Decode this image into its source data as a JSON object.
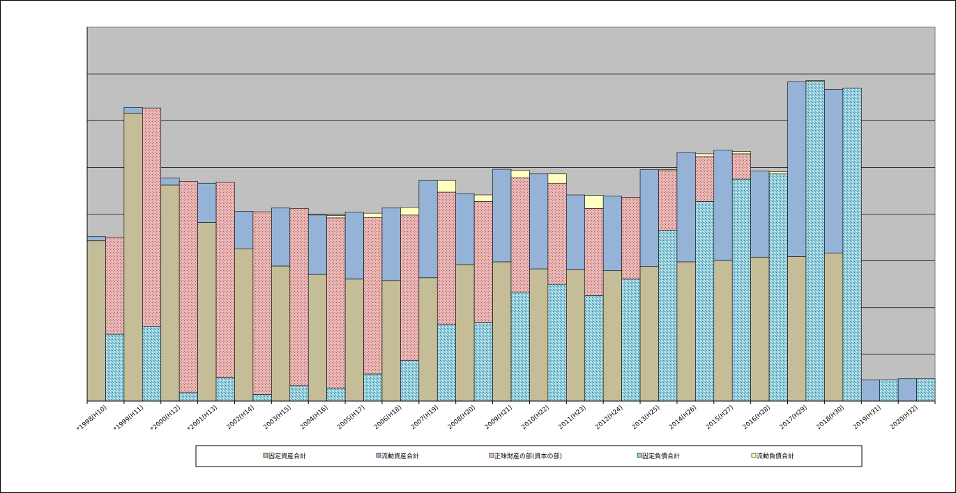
{
  "chart_data": {
    "type": "bar",
    "stacked": true,
    "grouping": "two stacked bars per year (assets | liabilities+equity)",
    "ylim": [
      0,
      8
    ],
    "y_gridlines": 8,
    "grid": true,
    "legend_position": "bottom",
    "categories": [
      "*1998(H10)",
      "*1999(H11)",
      "*2000(H12)",
      "*2001(H13)",
      "2002(H14)",
      "2003(H15)",
      "2004(H16)",
      "2005(H17)",
      "2006(H18)",
      "2007(H19)",
      "2008(H20)",
      "2009(H21)",
      "2010(H22)",
      "2011(H23)",
      "2012(H24)",
      "2013(H25)",
      "2014(H26)",
      "2015(H27)",
      "2016(H28)",
      "2017(H29)",
      "2018(H30)",
      "2019(H31)",
      "2020(H32)"
    ],
    "series": [
      {
        "name": "固定資産合計",
        "stack": "assets",
        "color": "#C4BD97",
        "values": [
          3.43,
          6.16,
          4.62,
          3.82,
          3.26,
          2.89,
          2.71,
          2.61,
          2.58,
          2.64,
          2.92,
          2.98,
          2.83,
          2.81,
          2.79,
          2.88,
          2.98,
          3.01,
          3.08,
          3.09,
          3.17,
          0.0,
          0.0
        ]
      },
      {
        "name": "流動資産合計",
        "stack": "assets",
        "color": "#95B3D7",
        "values": [
          0.09,
          0.12,
          0.15,
          0.84,
          0.8,
          1.24,
          1.27,
          1.43,
          1.55,
          2.08,
          1.52,
          1.98,
          2.03,
          1.6,
          1.6,
          2.07,
          2.34,
          2.36,
          1.84,
          3.74,
          3.5,
          0.45,
          0.48
        ]
      },
      {
        "name": "固定負債合計",
        "stack": "liabilities",
        "color": "#92CDDC",
        "values": [
          1.43,
          1.6,
          0.18,
          0.5,
          0.14,
          0.33,
          0.28,
          0.58,
          0.87,
          1.64,
          1.68,
          2.33,
          2.5,
          2.26,
          2.61,
          3.65,
          4.27,
          4.75,
          4.86,
          6.84,
          6.7,
          0.45,
          0.48
        ]
      },
      {
        "name": "正味財産の部(資本の部)",
        "stack": "liabilities",
        "color": "#E6B9B8",
        "values": [
          2.07,
          4.67,
          4.52,
          4.18,
          3.91,
          3.79,
          3.64,
          3.35,
          3.11,
          2.83,
          2.59,
          2.45,
          2.16,
          1.86,
          1.75,
          1.28,
          0.96,
          0.54,
          0.0,
          0.0,
          0.0,
          0.0,
          0.0
        ]
      },
      {
        "name": "流動負債合計",
        "stack": "liabilities",
        "color": "#FFFFC0",
        "values": [
          0.0,
          0.0,
          0.0,
          0.0,
          0.0,
          0.0,
          0.05,
          0.09,
          0.16,
          0.25,
          0.14,
          0.16,
          0.2,
          0.28,
          0.0,
          0.02,
          0.06,
          0.05,
          0.05,
          0.02,
          0.0,
          0.0,
          0.0
        ]
      }
    ],
    "legend": [
      "固定資産合計",
      "流動資産合計",
      "正味財産の部(資本の部)",
      "固定負債合計",
      "流動負債合計"
    ]
  }
}
